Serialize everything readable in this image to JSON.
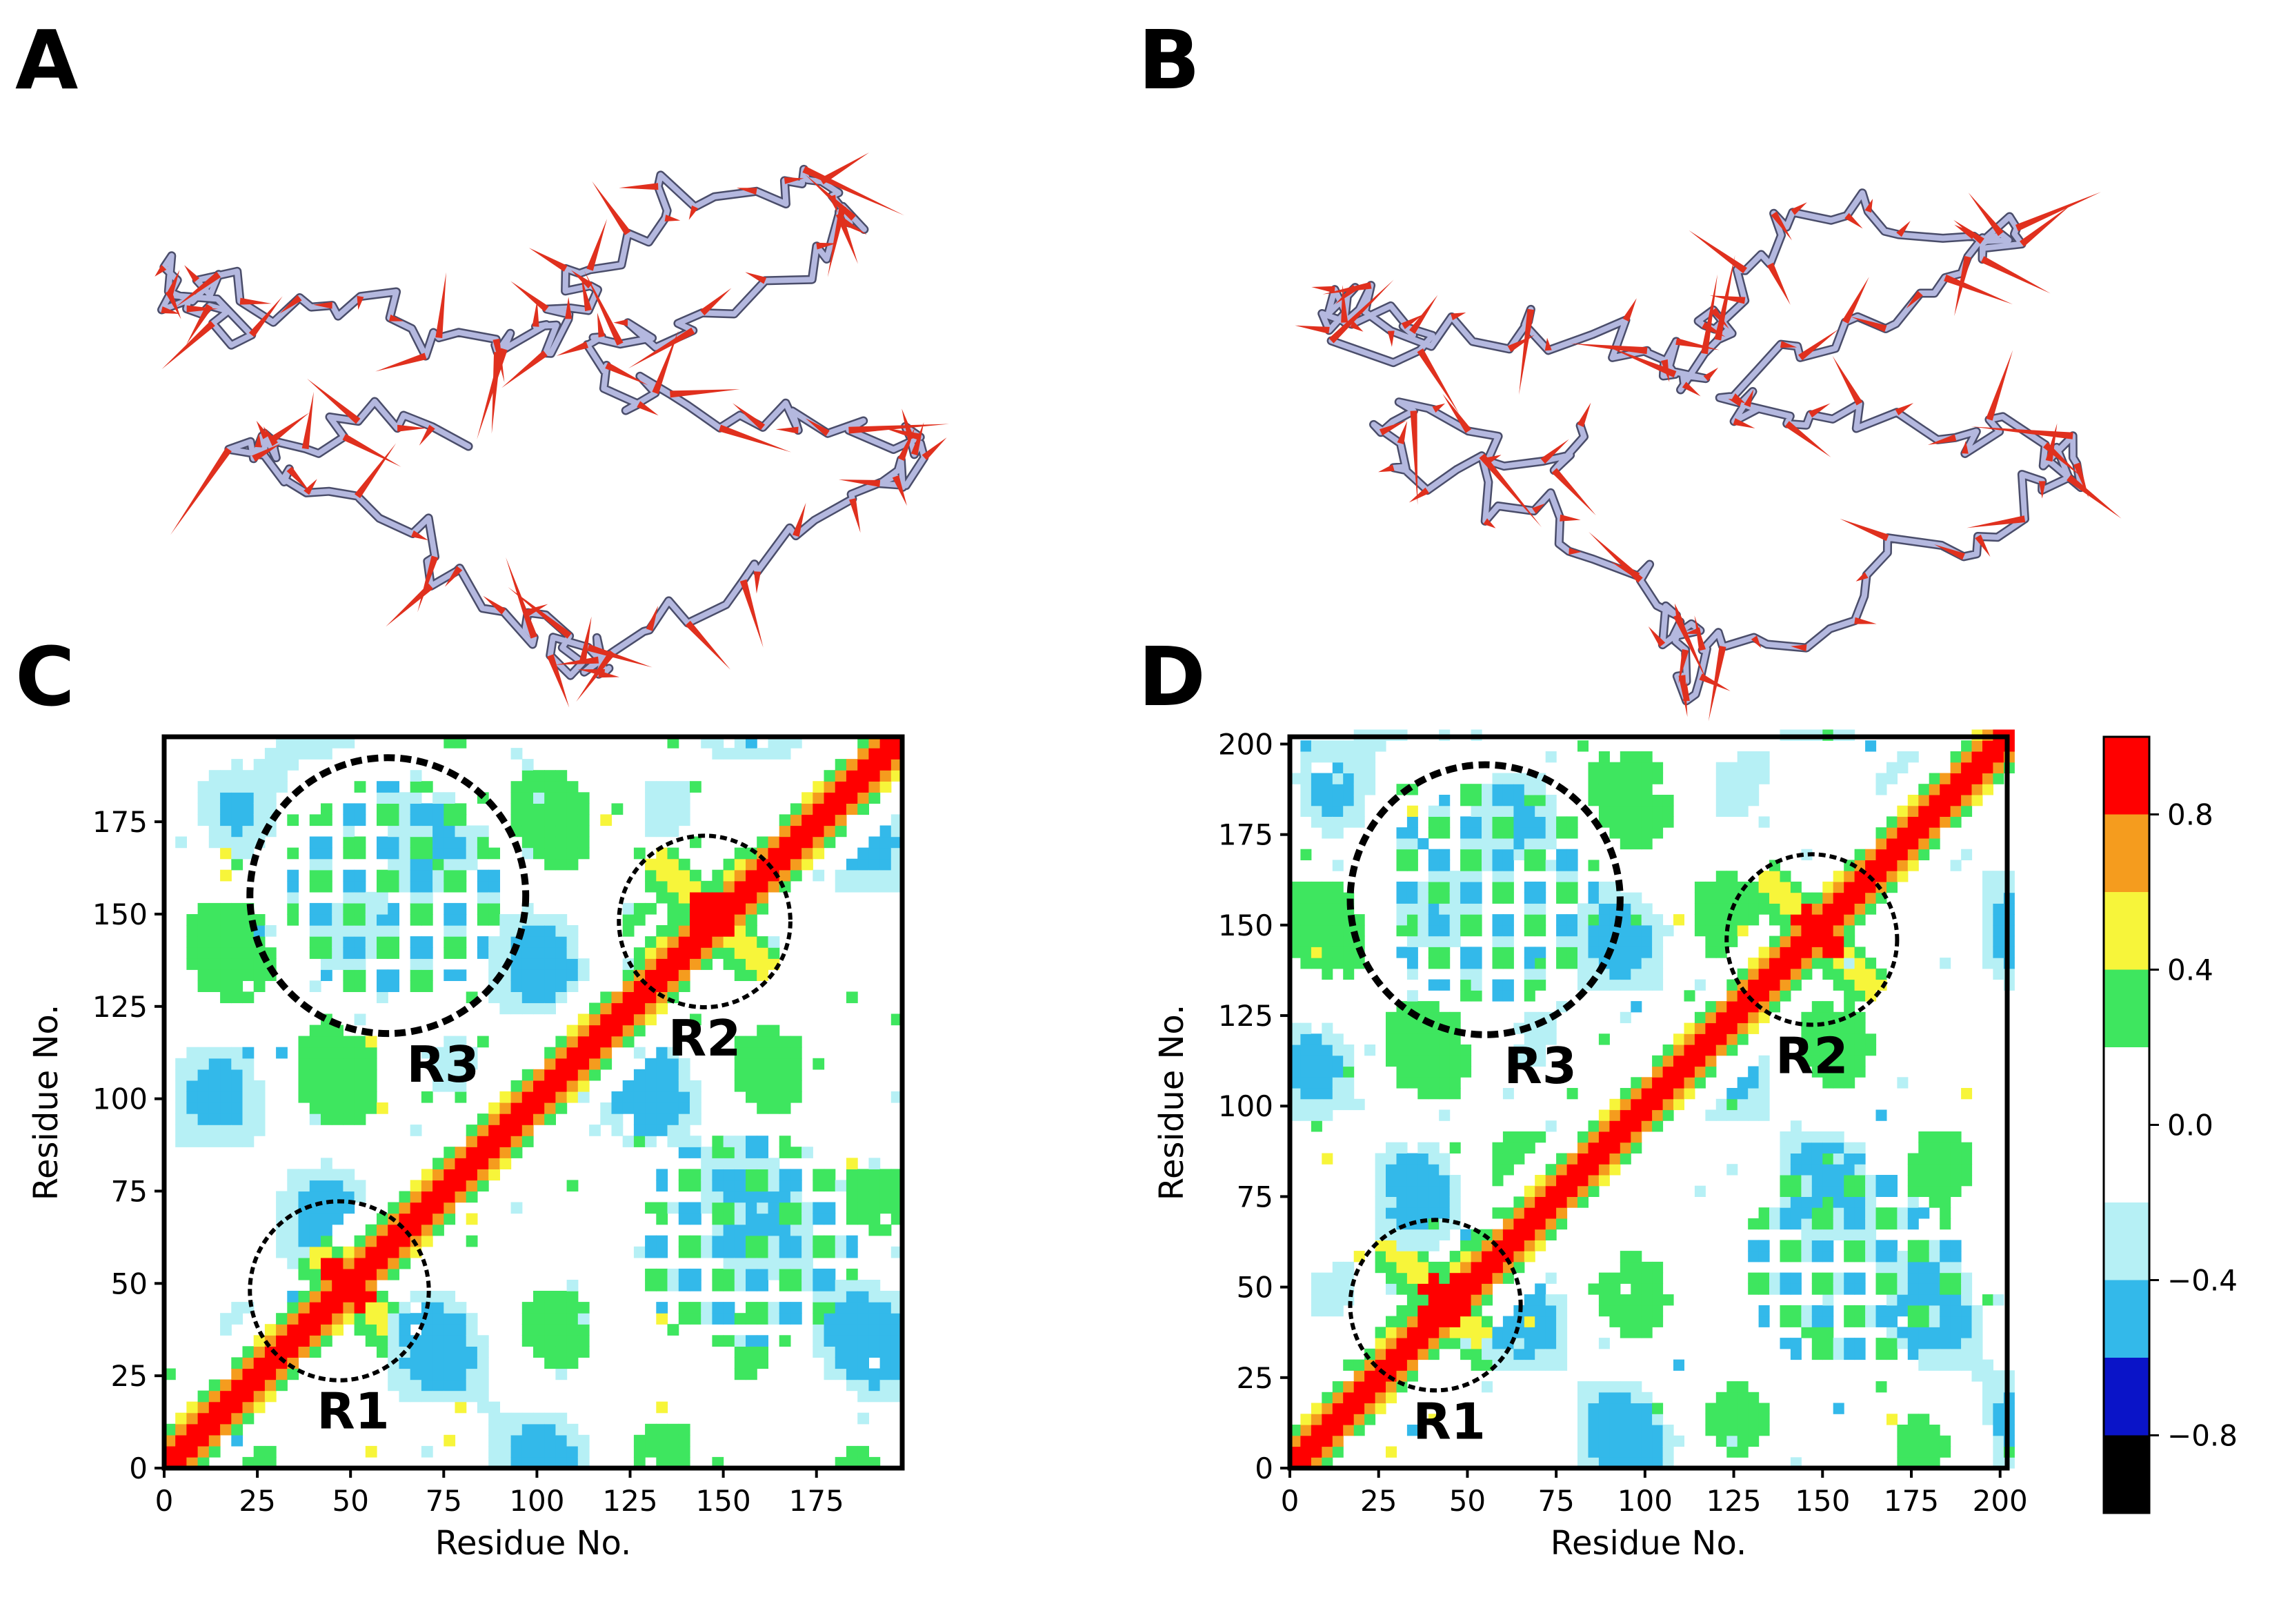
{
  "panels": {
    "A": "A",
    "B": "B",
    "C": "C",
    "D": "D"
  },
  "colors": {
    "backbone": "#b4b8df",
    "backbone_dark": "#4a4d6a",
    "vector": "#e0301e"
  },
  "colorbar": {
    "ticks": [
      "0.8",
      "0.4",
      "0.0",
      "−0.4",
      "−0.8"
    ],
    "tick_values": [
      0.8,
      0.4,
      0.0,
      -0.4,
      -0.8
    ],
    "range": [
      -1.0,
      1.0
    ],
    "bands": [
      {
        "from": 0.8,
        "to": 1.0,
        "color": "#ff0000"
      },
      {
        "from": 0.6,
        "to": 0.8,
        "color": "#f59c1e"
      },
      {
        "from": 0.4,
        "to": 0.6,
        "color": "#f7f53a"
      },
      {
        "from": 0.2,
        "to": 0.4,
        "color": "#3ee65f"
      },
      {
        "from": -0.2,
        "to": 0.2,
        "color": "#ffffff"
      },
      {
        "from": -0.4,
        "to": -0.2,
        "color": "#b6f0f5"
      },
      {
        "from": -0.6,
        "to": -0.4,
        "color": "#33b9ea"
      },
      {
        "from": -0.8,
        "to": -0.6,
        "color": "#0a14c8"
      },
      {
        "from": -1.0,
        "to": -0.8,
        "color": "#000000"
      }
    ]
  },
  "chart_data": [
    {
      "type": "heatmap",
      "panel": "C",
      "title": "",
      "xlabel": "Residue No.",
      "ylabel": "Residue No.",
      "xlim": [
        0,
        198
      ],
      "ylim": [
        0,
        198
      ],
      "xticks": [
        0,
        25,
        50,
        75,
        100,
        125,
        150,
        175
      ],
      "yticks": [
        0,
        25,
        50,
        75,
        100,
        125,
        150,
        175
      ],
      "regions": [
        {
          "label": "R1",
          "center": [
            47,
            48
          ],
          "radius": 24,
          "style": "dashed"
        },
        {
          "label": "R2",
          "center": [
            145,
            148
          ],
          "radius": 23,
          "style": "dashed"
        },
        {
          "label": "R3",
          "center": [
            60,
            155
          ],
          "radius": 37,
          "style": "dashed-bold"
        }
      ]
    },
    {
      "type": "heatmap",
      "panel": "D",
      "title": "",
      "xlabel": "Residue No.",
      "ylabel": "Residue No.",
      "xlim": [
        0,
        202
      ],
      "ylim": [
        0,
        202
      ],
      "xticks": [
        0,
        25,
        50,
        75,
        100,
        125,
        150,
        175,
        200
      ],
      "yticks": [
        0,
        25,
        50,
        75,
        100,
        125,
        150,
        175,
        200
      ],
      "regions": [
        {
          "label": "R1",
          "center": [
            41,
            45
          ],
          "radius": 24,
          "style": "dashed"
        },
        {
          "label": "R2",
          "center": [
            147,
            146
          ],
          "radius": 24,
          "style": "dashed"
        },
        {
          "label": "R3",
          "center": [
            55,
            157
          ],
          "radius": 38,
          "style": "dashed-bold"
        }
      ]
    }
  ]
}
